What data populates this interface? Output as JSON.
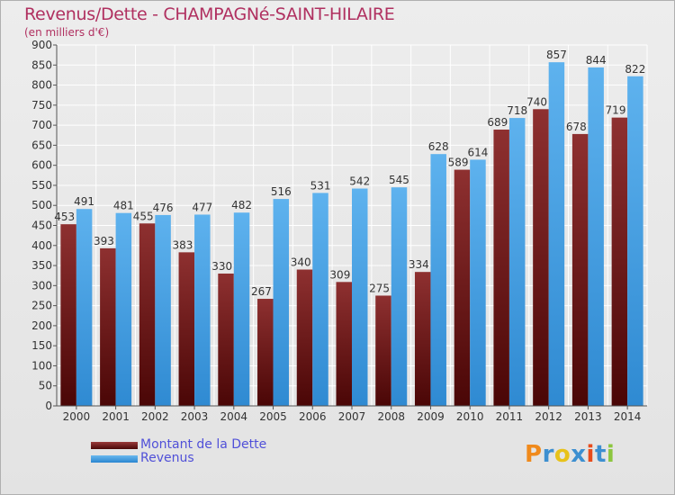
{
  "header": {
    "title": "Revenus/Dette - CHAMPAGNé-SAINT-HILAIRE",
    "subtitle": "(en milliers d'€)"
  },
  "legend": {
    "debt_label": "Montant de la Dette",
    "revenue_label": "Revenus"
  },
  "logo": {
    "letters": [
      "P",
      "r",
      "o",
      "x",
      "i",
      "t",
      "i"
    ]
  },
  "colors": {
    "debt": "#6b1a1a",
    "revenue": "#4aa3e8",
    "title": "#b03060",
    "legend_text": "#5050d8"
  },
  "chart_data": {
    "type": "bar",
    "title": "Revenus/Dette - CHAMPAGNé-SAINT-HILAIRE",
    "ylabel": "(en milliers d'€)",
    "xlabel": "",
    "ylim": [
      0,
      900
    ],
    "yticks": [
      0,
      50,
      100,
      150,
      200,
      250,
      300,
      350,
      400,
      450,
      500,
      550,
      600,
      650,
      700,
      750,
      800,
      850,
      900
    ],
    "grid": true,
    "categories": [
      "2000",
      "2001",
      "2002",
      "2003",
      "2004",
      "2005",
      "2006",
      "2007",
      "2008",
      "2009",
      "2010",
      "2011",
      "2012",
      "2013",
      "2014"
    ],
    "series": [
      {
        "name": "Montant de la Dette",
        "values": [
          453,
          393,
          455,
          383,
          330,
          267,
          340,
          309,
          275,
          334,
          589,
          689,
          740,
          678,
          719
        ]
      },
      {
        "name": "Revenus",
        "values": [
          491,
          481,
          476,
          477,
          482,
          516,
          531,
          542,
          545,
          628,
          614,
          718,
          857,
          844,
          822
        ]
      }
    ]
  }
}
